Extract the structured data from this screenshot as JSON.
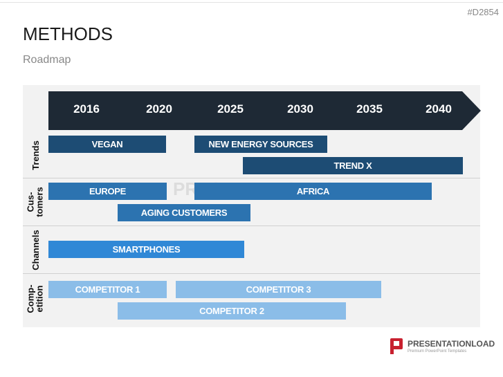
{
  "header": {
    "code": "#D2854",
    "title": "METHODS",
    "subtitle": "Roadmap"
  },
  "timeline": {
    "years": [
      "2016",
      "2020",
      "2025",
      "2030",
      "2035",
      "2040"
    ]
  },
  "watermark": "PRESENTATIONLOAD",
  "sections": [
    {
      "label": [
        "Trends"
      ],
      "bars": [
        "VEGAN",
        "NEW ENERGY SOURCES",
        "TREND X"
      ]
    },
    {
      "label": [
        "Cus-",
        "tomers"
      ],
      "bars": [
        "EUROPE",
        "AFRICA",
        "AGING CUSTOMERS"
      ]
    },
    {
      "label": [
        "Channels"
      ],
      "bars": [
        "SMARTPHONES"
      ]
    },
    {
      "label": [
        "Comp-",
        "etition"
      ],
      "bars": [
        "COMPETITOR 1",
        "COMPETITOR 3",
        "COMPETITOR 2"
      ]
    }
  ],
  "footer": {
    "brand": "PRESENTATIONLOAD",
    "tagline": "Premium PowerPoint Templates"
  }
}
